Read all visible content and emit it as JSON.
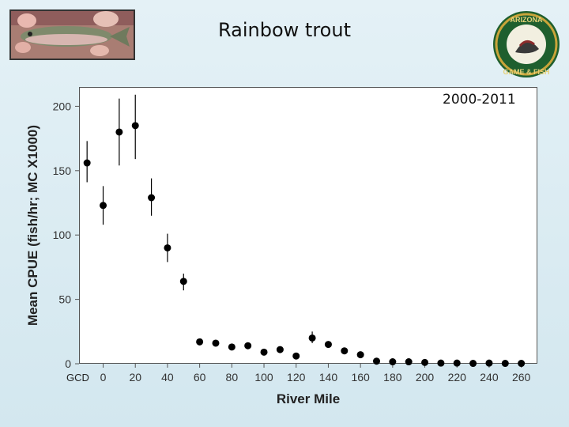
{
  "title": "Rainbow trout",
  "photo": {
    "icon": "rainbow-trout-photo"
  },
  "logo": {
    "icon": "arizona-game-fish-logo",
    "text": "ARIZONA GAME & FISH"
  },
  "period_label": "2000-2011",
  "gcd_label": "GCD",
  "chart_data": {
    "type": "scatter",
    "xlabel": "River Mile",
    "ylabel": "Mean CPUE (fish/hr; MC X1000)",
    "xlim": [
      -15,
      270
    ],
    "ylim": [
      0,
      215
    ],
    "xticks": [
      0,
      20,
      40,
      60,
      80,
      100,
      120,
      140,
      160,
      180,
      200,
      220,
      240,
      260
    ],
    "yticks": [
      0,
      50,
      100,
      150,
      200
    ],
    "grid": false,
    "marker_color": "#000000",
    "points": [
      {
        "x": -10,
        "y": 156,
        "err_low": 141,
        "err_high": 173
      },
      {
        "x": 0,
        "y": 123,
        "err_low": 108,
        "err_high": 138
      },
      {
        "x": 10,
        "y": 180,
        "err_low": 154,
        "err_high": 206
      },
      {
        "x": 20,
        "y": 185,
        "err_low": 159,
        "err_high": 209
      },
      {
        "x": 30,
        "y": 129,
        "err_low": 115,
        "err_high": 144
      },
      {
        "x": 40,
        "y": 90,
        "err_low": 79,
        "err_high": 101
      },
      {
        "x": 50,
        "y": 64,
        "err_low": 57,
        "err_high": 70
      },
      {
        "x": 60,
        "y": 17,
        "err_low": 15,
        "err_high": 19
      },
      {
        "x": 70,
        "y": 16,
        "err_low": 14,
        "err_high": 18
      },
      {
        "x": 80,
        "y": 13,
        "err_low": 11,
        "err_high": 15
      },
      {
        "x": 90,
        "y": 14,
        "err_low": 12,
        "err_high": 16
      },
      {
        "x": 100,
        "y": 9,
        "err_low": 7,
        "err_high": 11
      },
      {
        "x": 110,
        "y": 11,
        "err_low": 9,
        "err_high": 13
      },
      {
        "x": 120,
        "y": 6,
        "err_low": 5,
        "err_high": 7
      },
      {
        "x": 130,
        "y": 20,
        "err_low": 16,
        "err_high": 25
      },
      {
        "x": 140,
        "y": 15,
        "err_low": 13,
        "err_high": 17
      },
      {
        "x": 150,
        "y": 10,
        "err_low": 8,
        "err_high": 12
      },
      {
        "x": 160,
        "y": 7,
        "err_low": 6,
        "err_high": 8
      },
      {
        "x": 170,
        "y": 2,
        "err_low": 1,
        "err_high": 3
      },
      {
        "x": 180,
        "y": 1.5,
        "err_low": 1,
        "err_high": 2
      },
      {
        "x": 190,
        "y": 1.5,
        "err_low": 1,
        "err_high": 2
      },
      {
        "x": 200,
        "y": 1,
        "err_low": 0.5,
        "err_high": 1.5
      },
      {
        "x": 210,
        "y": 0.5,
        "err_low": 0,
        "err_high": 1
      },
      {
        "x": 220,
        "y": 0.5,
        "err_low": 0,
        "err_high": 1
      },
      {
        "x": 230,
        "y": 0.3,
        "err_low": 0,
        "err_high": 0.6
      },
      {
        "x": 240,
        "y": 0.5,
        "err_low": 0,
        "err_high": 1
      },
      {
        "x": 250,
        "y": 0.3,
        "err_low": 0,
        "err_high": 0.6
      },
      {
        "x": 260,
        "y": 0.3,
        "err_low": 0,
        "err_high": 0.6
      }
    ]
  }
}
